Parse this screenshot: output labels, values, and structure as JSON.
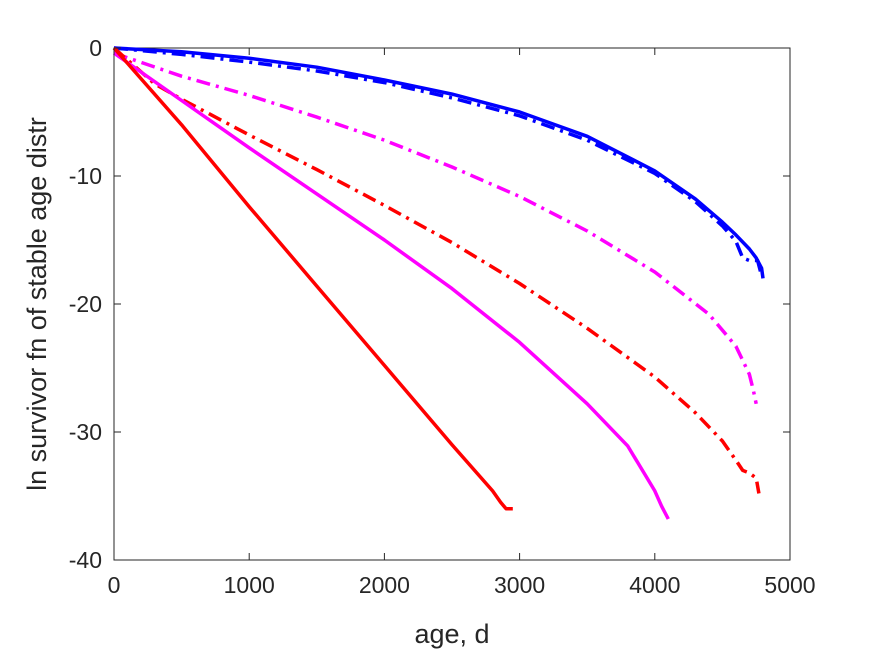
{
  "chart_data": {
    "type": "line",
    "title": "",
    "xlabel": "age, d",
    "ylabel": "ln survivor fn of stable age distr",
    "xlim": [
      0,
      5000
    ],
    "ylim": [
      -40,
      0
    ],
    "xticks": [
      0,
      1000,
      2000,
      3000,
      4000,
      5000
    ],
    "yticks": [
      0,
      -10,
      -20,
      -30,
      -40
    ],
    "xtick_labels": [
      "0",
      "1000",
      "2000",
      "3000",
      "4000",
      "5000"
    ],
    "ytick_labels": [
      "0",
      "-10",
      "-20",
      "-30",
      "-40"
    ],
    "grid": false,
    "legend": "none",
    "series": [
      {
        "color": "#0000ff",
        "style": "solid",
        "x": [
          0,
          500,
          1000,
          1500,
          2000,
          2500,
          3000,
          3500,
          4000,
          4300,
          4500,
          4600,
          4700,
          4750,
          4790,
          4800
        ],
        "y": [
          0,
          -0.3,
          -0.8,
          -1.5,
          -2.5,
          -3.6,
          -5.0,
          -6.9,
          -9.6,
          -11.8,
          -13.6,
          -14.6,
          -15.7,
          -16.4,
          -17.2,
          -18.0
        ]
      },
      {
        "color": "#0000ff",
        "style": "dashdot",
        "x": [
          0,
          500,
          1000,
          1500,
          2000,
          2500,
          3000,
          3500,
          4000,
          4300,
          4500,
          4600,
          4650,
          4700,
          4760,
          4790
        ],
        "y": [
          0,
          -0.5,
          -1.1,
          -1.8,
          -2.7,
          -3.9,
          -5.3,
          -7.2,
          -9.8,
          -12.0,
          -13.9,
          -15.1,
          -16.4,
          -16.6,
          -16.6,
          -17.8
        ]
      },
      {
        "color": "#ff00ff",
        "style": "dashdot",
        "x": [
          0,
          500,
          1000,
          1500,
          2000,
          2500,
          3000,
          3500,
          4000,
          4400,
          4600,
          4700,
          4730,
          4750
        ],
        "y": [
          -0.4,
          -2.2,
          -3.7,
          -5.4,
          -7.2,
          -9.3,
          -11.6,
          -14.3,
          -17.5,
          -20.8,
          -23.3,
          -25.5,
          -26.8,
          -27.8
        ]
      },
      {
        "color": "#ff0000",
        "style": "dashdot",
        "x": [
          0,
          300,
          500,
          1000,
          1500,
          2000,
          2500,
          3000,
          3500,
          4000,
          4300,
          4500,
          4600,
          4650,
          4700,
          4750,
          4770
        ],
        "y": [
          0,
          -2.8,
          -4.0,
          -6.8,
          -9.5,
          -12.3,
          -15.2,
          -18.4,
          -21.9,
          -25.7,
          -28.5,
          -30.7,
          -32.2,
          -33.0,
          -33.2,
          -33.6,
          -34.8
        ]
      },
      {
        "color": "#ff00ff",
        "style": "solid",
        "x": [
          0,
          500,
          1000,
          1500,
          2000,
          2500,
          3000,
          3500,
          3800,
          4000,
          4050,
          4100
        ],
        "y": [
          -0.4,
          -4.1,
          -7.8,
          -11.4,
          -15.0,
          -18.8,
          -23.0,
          -27.8,
          -31.1,
          -34.6,
          -35.8,
          -36.8
        ]
      },
      {
        "color": "#ff0000",
        "style": "solid",
        "x": [
          0,
          500,
          1000,
          1500,
          2000,
          2500,
          2800,
          2860,
          2900,
          2950
        ],
        "y": [
          0,
          -6.0,
          -12.4,
          -18.6,
          -24.8,
          -31.0,
          -34.6,
          -35.5,
          -36.0,
          -36.0
        ]
      }
    ]
  }
}
